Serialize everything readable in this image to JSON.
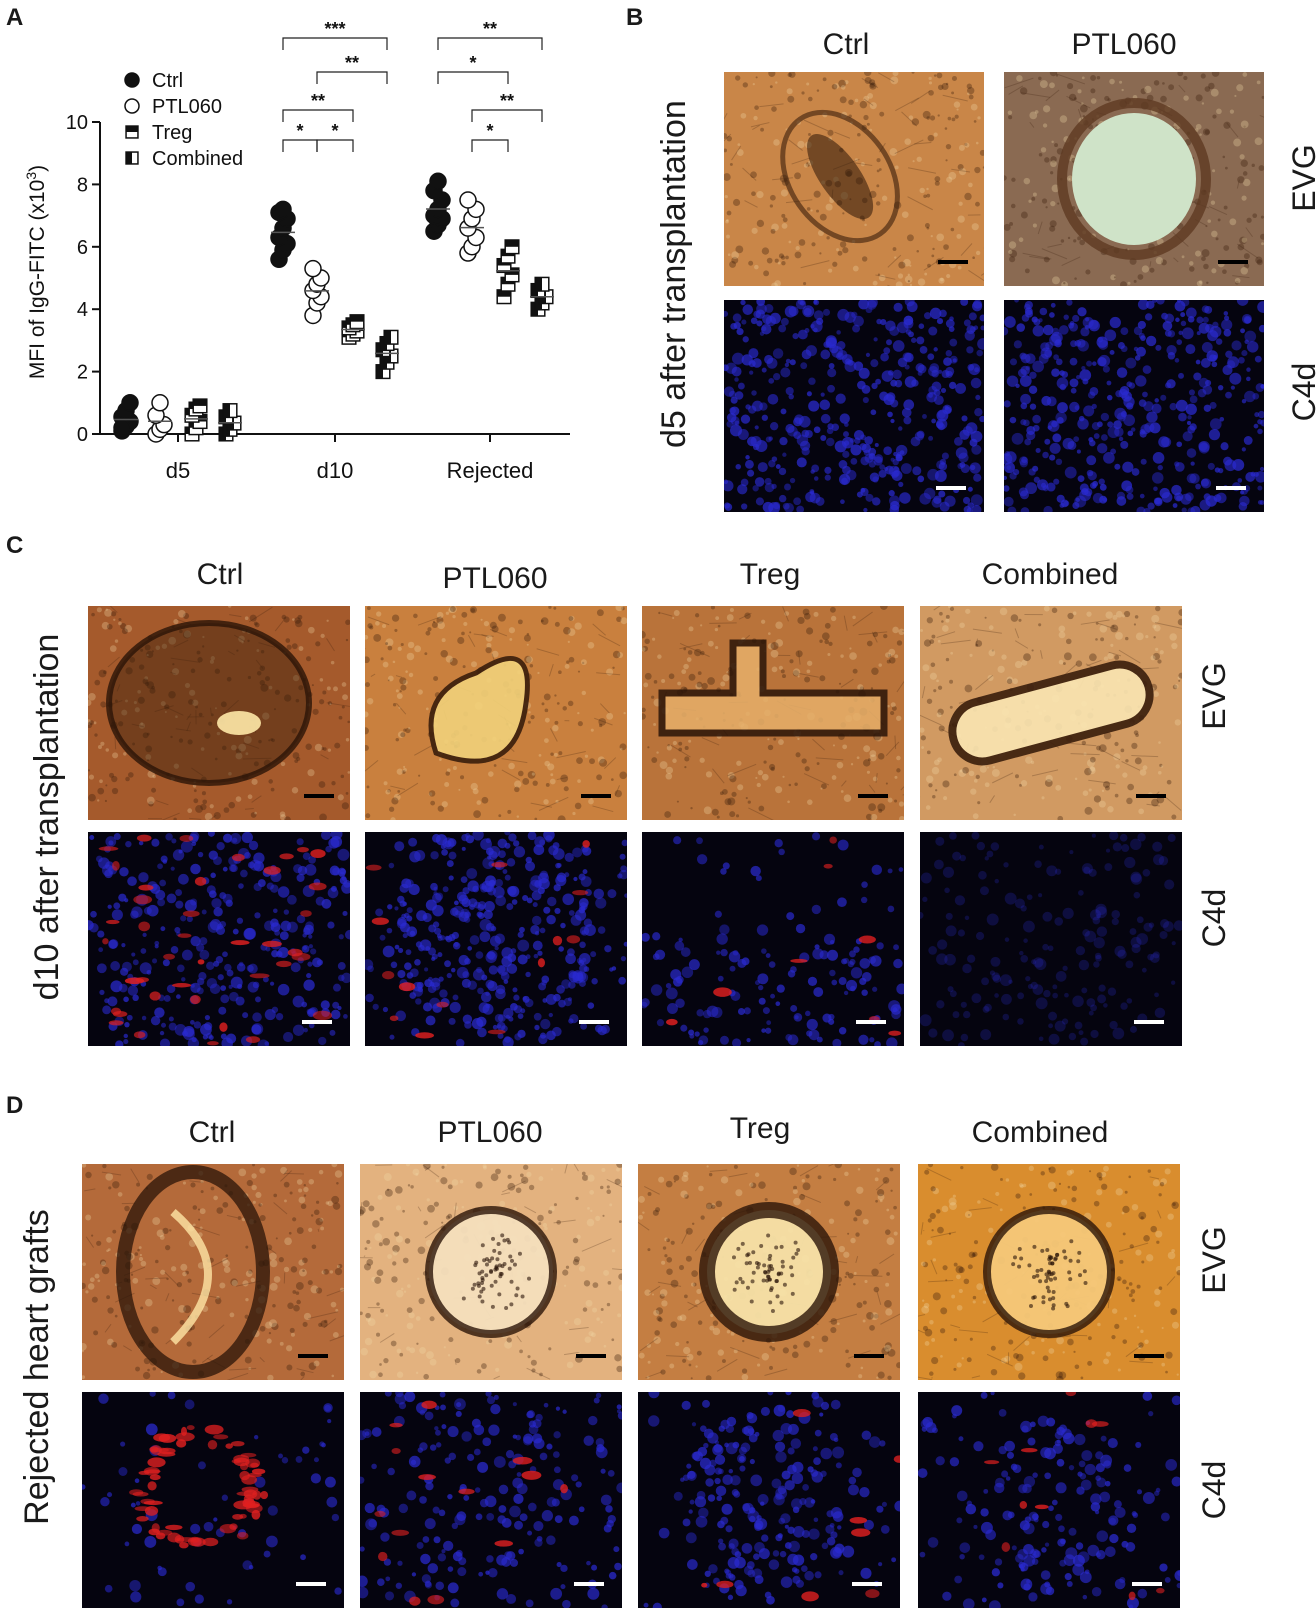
{
  "panels": {
    "a": "A",
    "b": "B",
    "c": "C",
    "d": "D"
  },
  "chart_data": {
    "type": "scatter",
    "ylabel": "MFI of IgG-FITC (x10",
    "ylabel_sup": "3",
    "ylabel_tail": ")",
    "ylim": [
      0,
      10
    ],
    "yticks": [
      "0",
      "2",
      "4",
      "6",
      "8",
      "10"
    ],
    "categories": [
      "d5",
      "d10",
      "Rejected"
    ],
    "legend_position": "top-left",
    "series": [
      {
        "name": "Ctrl",
        "marker": "filled-circle",
        "values": {
          "d5": [
            0.1,
            0.25,
            0.4,
            0.55,
            0.75,
            1.0,
            0.2
          ],
          "d10": [
            5.6,
            5.9,
            6.1,
            6.3,
            6.6,
            6.9,
            7.1,
            7.2
          ],
          "Rejected": [
            6.5,
            6.7,
            6.9,
            7.0,
            7.2,
            7.5,
            7.8,
            8.1
          ]
        }
      },
      {
        "name": "PTL060",
        "marker": "open-circle",
        "values": {
          "d5": [
            0.0,
            0.15,
            0.3,
            0.6,
            1.0
          ],
          "d10": [
            3.8,
            4.2,
            4.4,
            4.6,
            4.8,
            5.0,
            5.3
          ],
          "Rejected": [
            5.8,
            6.0,
            6.3,
            6.6,
            6.9,
            7.2,
            7.5
          ]
        }
      },
      {
        "name": "Treg",
        "marker": "half-filled-square",
        "values": {
          "d5": [
            0.0,
            0.2,
            0.4,
            0.6,
            0.8,
            0.9
          ],
          "d10": [
            3.1,
            3.2,
            3.3,
            3.4,
            3.5,
            3.6
          ],
          "Rejected": [
            4.4,
            4.8,
            5.1,
            5.4,
            5.7,
            6.0
          ]
        }
      },
      {
        "name": "Combined",
        "marker": "half-filled-square-left",
        "values": {
          "d5": [
            0.0,
            0.15,
            0.35,
            0.55,
            0.75
          ],
          "d10": [
            2.0,
            2.3,
            2.5,
            2.7,
            2.9,
            3.1
          ],
          "Rejected": [
            4.0,
            4.2,
            4.4,
            4.6,
            4.8
          ]
        }
      }
    ],
    "significance": [
      {
        "group": "d10",
        "from": "Ctrl",
        "to": "Combined",
        "label": "***"
      },
      {
        "group": "d10",
        "from": "PTL060",
        "to": "Combined",
        "label": "**"
      },
      {
        "group": "d10",
        "from": "Ctrl",
        "to": "Treg",
        "label": "**"
      },
      {
        "group": "d10",
        "from": "Ctrl",
        "to": "PTL060",
        "label": "*"
      },
      {
        "group": "d10",
        "from": "PTL060",
        "to": "Treg",
        "label": "*"
      },
      {
        "group": "Rejected",
        "from": "Ctrl",
        "to": "Combined",
        "label": "**"
      },
      {
        "group": "Rejected",
        "from": "Ctrl",
        "to": "Treg",
        "label": "*"
      },
      {
        "group": "Rejected",
        "from": "PTL060",
        "to": "Combined",
        "label": "**"
      },
      {
        "group": "Rejected",
        "from": "PTL060",
        "to": "Treg",
        "label": "*"
      }
    ]
  },
  "panel_b": {
    "side_label": "d5 after transplantation",
    "columns": [
      "Ctrl",
      "PTL060"
    ],
    "rows": [
      "EVG",
      "C4d"
    ]
  },
  "panel_c": {
    "side_label": "d10 after transplantation",
    "columns": [
      "Ctrl",
      "PTL060",
      "Treg",
      "Combined"
    ],
    "rows": [
      "EVG",
      "C4d"
    ]
  },
  "panel_d": {
    "side_label": "Rejected heart grafts",
    "columns": [
      "Ctrl",
      "PTL060",
      "Treg",
      "Combined"
    ],
    "rows": [
      "EVG",
      "C4d"
    ]
  },
  "colors": {
    "evg_tissue": "#c9803e",
    "evg_dark": "#3a1e0c",
    "evg_light": "#f3d9a8",
    "evg_lumen_d5": "#cfe3c8",
    "c4d_background": "#05040f",
    "c4d_dapi": "#2a2ad0",
    "c4d_c4d": "#e02020"
  }
}
